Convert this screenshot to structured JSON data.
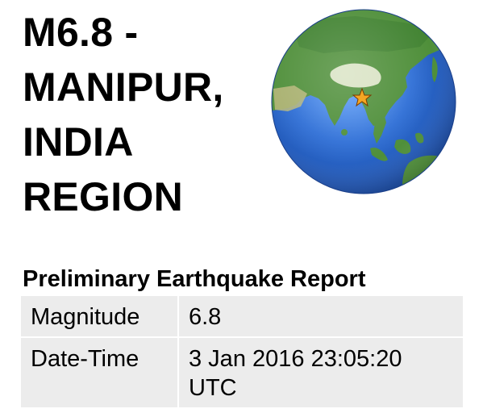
{
  "title_lines": [
    "M6.8 -",
    "MANIPUR,",
    "INDIA",
    "REGION"
  ],
  "report": {
    "heading": "Preliminary Earthquake Report",
    "rows": [
      {
        "label": "Magnitude",
        "value": "6.8"
      },
      {
        "label": "Date-Time",
        "value": "3 Jan 2016 23:05:20 UTC"
      }
    ]
  },
  "globe": {
    "icon": "earth-globe-asia-icon",
    "marker_icon": "epicenter-star-icon",
    "ocean_color": "#2f6fd6",
    "land_color": "#4f8f3a",
    "marker_color": "#f5a623"
  }
}
